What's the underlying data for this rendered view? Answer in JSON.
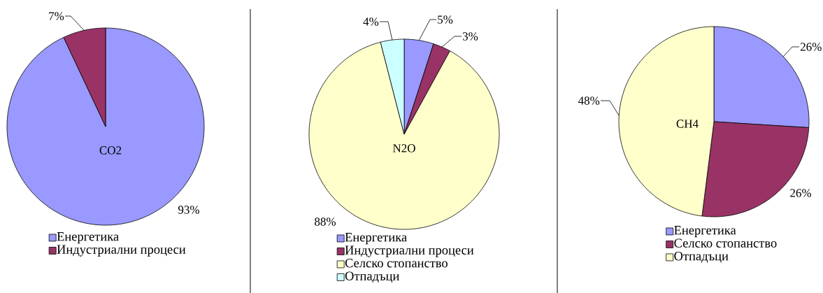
{
  "chart_data": [
    {
      "type": "pie",
      "title": "CO2",
      "categories": [
        "Енергетика",
        "Индустриални процеси"
      ],
      "values": [
        93,
        7
      ],
      "colors": [
        "#9999ff",
        "#993366"
      ],
      "value_labels": [
        "93%",
        "7%"
      ],
      "legend": "bottom"
    },
    {
      "type": "pie",
      "title": "N2O",
      "categories": [
        "Енергетика",
        "Индустриални процеси",
        "Селско стопанство",
        "Отпадъци"
      ],
      "values": [
        5,
        3,
        88,
        4
      ],
      "colors": [
        "#9999ff",
        "#993366",
        "#ffffcc",
        "#ccffff"
      ],
      "value_labels": [
        "5%",
        "3%",
        "88%",
        "4%"
      ],
      "legend": "bottom"
    },
    {
      "type": "pie",
      "title": "CH4",
      "categories": [
        "Енергетика",
        "Селско стопанство",
        "Отпадъци"
      ],
      "values": [
        26,
        26,
        48
      ],
      "colors": [
        "#9999ff",
        "#993366",
        "#ffffcc"
      ],
      "value_labels": [
        "26%",
        "26%",
        "48%"
      ],
      "legend": "bottom"
    }
  ]
}
